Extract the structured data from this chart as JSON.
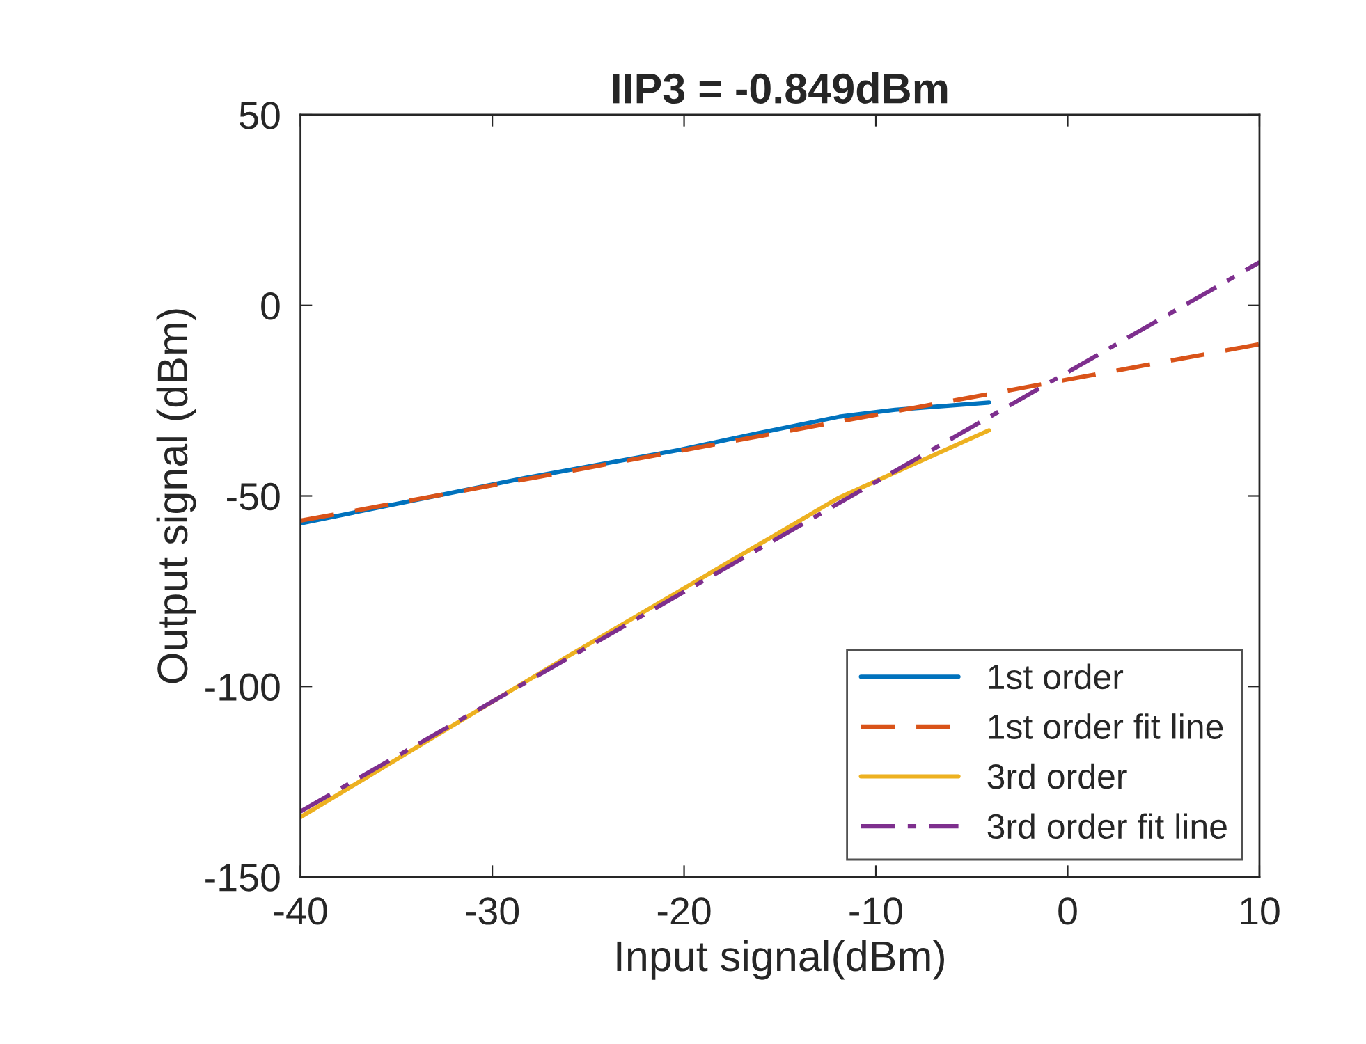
{
  "chart_data": {
    "type": "line",
    "title": "IIP3 = -0.849dBm",
    "xlabel": "Input signal(dBm)",
    "ylabel": "Output signal (dBm)",
    "xlim": [
      -40,
      10
    ],
    "xticks": [
      -40,
      -30,
      -20,
      -10,
      0,
      10
    ],
    "ylim": [
      -150,
      50
    ],
    "yticks": [
      -150,
      -100,
      -50,
      0,
      50
    ],
    "grid": false,
    "legend": "bottom right",
    "series": [
      {
        "name": "1st order",
        "color": "#0072bd",
        "line_style": "solid",
        "x": [
          -40,
          -28.3,
          -20.3,
          -16.2,
          -11.9,
          -9,
          -4.1
        ],
        "values": [
          -57.2,
          -45.3,
          -38,
          -33.6,
          -29.2,
          -27.4,
          -25.5
        ]
      },
      {
        "name": "1st order fit line",
        "color": "#d95319",
        "line_style": "dashed",
        "x": [
          -40,
          10
        ],
        "values": [
          -56.5,
          -10.2
        ]
      },
      {
        "name": "3rd order",
        "color": "#edb120",
        "line_style": "solid",
        "x": [
          -40,
          -25.9,
          -11.9,
          -4.1
        ],
        "values": [
          -134.3,
          -91.6,
          -50.4,
          -32.8
        ]
      },
      {
        "name": "3rd order fit line",
        "color": "#7e2f8e",
        "line_style": "dashdot",
        "x": [
          -40,
          10
        ],
        "values": [
          -132.8,
          11.3
        ]
      }
    ]
  }
}
